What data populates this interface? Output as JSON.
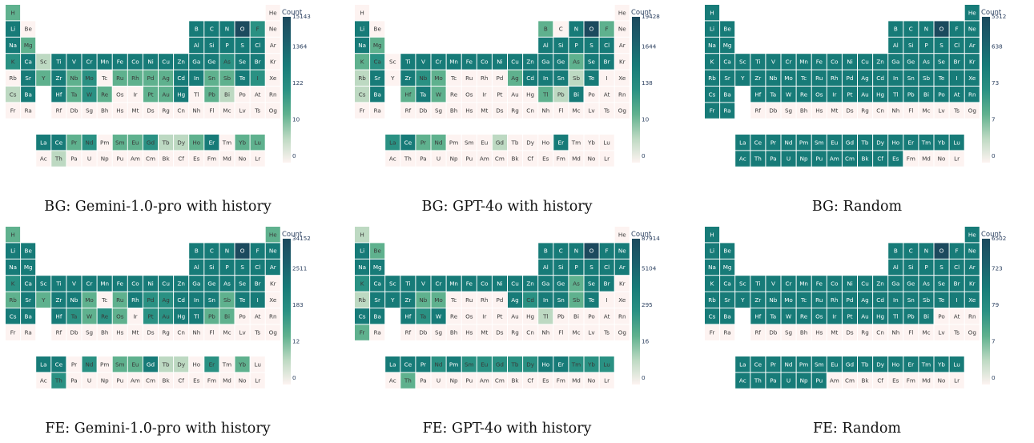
{
  "colors": {
    "scale": [
      "#fdf3f1",
      "#bdd9c2",
      "#5fb18e",
      "#2a9183",
      "#177b78",
      "#1b5f6c",
      "#1c4a5e"
    ],
    "cell_text_dark": "#3a3a3a",
    "cell_text_light": "#ffffff"
  },
  "periodic_table": {
    "main_rows": [
      [
        "H",
        "",
        "",
        "",
        "",
        "",
        "",
        "",
        "",
        "",
        "",
        "",
        "",
        "",
        "",
        "",
        "",
        "He"
      ],
      [
        "Li",
        "Be",
        "",
        "",
        "",
        "",
        "",
        "",
        "",
        "",
        "",
        "",
        "B",
        "C",
        "N",
        "O",
        "F",
        "Ne"
      ],
      [
        "Na",
        "Mg",
        "",
        "",
        "",
        "",
        "",
        "",
        "",
        "",
        "",
        "",
        "Al",
        "Si",
        "P",
        "S",
        "Cl",
        "Ar"
      ],
      [
        "K",
        "Ca",
        "Sc",
        "Ti",
        "V",
        "Cr",
        "Mn",
        "Fe",
        "Co",
        "Ni",
        "Cu",
        "Zn",
        "Ga",
        "Ge",
        "As",
        "Se",
        "Br",
        "Kr"
      ],
      [
        "Rb",
        "Sr",
        "Y",
        "Zr",
        "Nb",
        "Mo",
        "Tc",
        "Ru",
        "Rh",
        "Pd",
        "Ag",
        "Cd",
        "In",
        "Sn",
        "Sb",
        "Te",
        "I",
        "Xe"
      ],
      [
        "Cs",
        "Ba",
        "",
        "Hf",
        "Ta",
        "W",
        "Re",
        "Os",
        "Ir",
        "Pt",
        "Au",
        "Hg",
        "Tl",
        "Pb",
        "Bi",
        "Po",
        "At",
        "Rn"
      ],
      [
        "Fr",
        "Ra",
        "",
        "Rf",
        "Db",
        "Sg",
        "Bh",
        "Hs",
        "Mt",
        "Ds",
        "Rg",
        "Cn",
        "Nh",
        "Fl",
        "Mc",
        "Lv",
        "Ts",
        "Og"
      ]
    ],
    "lanthanides": [
      "La",
      "Ce",
      "Pr",
      "Nd",
      "Pm",
      "Sm",
      "Eu",
      "Gd",
      "Tb",
      "Dy",
      "Ho",
      "Er",
      "Tm",
      "Yb",
      "Lu"
    ],
    "actinides": [
      "Ac",
      "Th",
      "Pa",
      "U",
      "Np",
      "Pu",
      "Am",
      "Cm",
      "Bk",
      "Cf",
      "Es",
      "Fm",
      "Md",
      "No",
      "Lr"
    ]
  },
  "chart_data": [
    {
      "type": "heatmap",
      "title": "BG: Gemini-1.0-pro with history",
      "colorbar": {
        "title": "Count",
        "ticks": [
          "15143",
          "1364",
          "122",
          "10",
          "0"
        ]
      },
      "levels": {
        "H": 2,
        "He": 0,
        "Li": 4,
        "Be": 0,
        "B": 4,
        "C": 4,
        "N": 4,
        "O": 6,
        "F": 3,
        "Ne": 0,
        "Na": 4,
        "Mg": 2,
        "Al": 4,
        "Si": 4,
        "P": 4,
        "S": 4,
        "Cl": 4,
        "Ar": 0,
        "K": 3,
        "Ca": 4,
        "Sc": 1,
        "Ti": 4,
        "V": 4,
        "Cr": 4,
        "Mn": 4,
        "Fe": 4,
        "Co": 4,
        "Ni": 4,
        "Cu": 4,
        "Zn": 4,
        "Ga": 4,
        "Ge": 4,
        "As": 3,
        "Se": 4,
        "Br": 4,
        "Kr": 0,
        "Rb": 0,
        "Sr": 4,
        "Y": 2,
        "Zr": 4,
        "Nb": 2,
        "Mo": 3,
        "Tc": 0,
        "Ru": 2,
        "Rh": 2,
        "Pd": 2,
        "Ag": 2,
        "Cd": 4,
        "In": 4,
        "Sn": 2,
        "Sb": 2,
        "Te": 4,
        "I": 3,
        "Xe": 0,
        "Cs": 1,
        "Ba": 4,
        "Hf": 4,
        "Ta": 2,
        "W": 3,
        "Re": 2,
        "Os": 0,
        "Ir": 0,
        "Pt": 2,
        "Au": 2,
        "Hg": 4,
        "Tl": 0,
        "Pb": 2,
        "Bi": 1,
        "Po": 0,
        "At": 0,
        "Rn": 0,
        "La": 4,
        "Ce": 4,
        "Pr": 2,
        "Nd": 3,
        "Pm": 0,
        "Sm": 2,
        "Eu": 2,
        "Gd": 3,
        "Tb": 1,
        "Dy": 1,
        "Ho": 2,
        "Er": 4,
        "Tm": 0,
        "Yb": 2,
        "Lu": 2,
        "Th": 1
      }
    },
    {
      "type": "heatmap",
      "title": "BG: GPT-4o with history",
      "colorbar": {
        "title": "Count",
        "ticks": [
          "19428",
          "1644",
          "138",
          "10",
          "0"
        ]
      },
      "levels": {
        "H": 0,
        "He": 0,
        "Li": 4,
        "Be": 0,
        "B": 2,
        "C": 0,
        "N": 4,
        "O": 6,
        "F": 2,
        "Ne": 0,
        "Na": 4,
        "Mg": 2,
        "Al": 4,
        "Si": 4,
        "P": 4,
        "S": 4,
        "Cl": 4,
        "Ar": 0,
        "K": 2,
        "Ca": 3,
        "Sc": 0,
        "Ti": 4,
        "V": 4,
        "Cr": 4,
        "Mn": 4,
        "Fe": 4,
        "Co": 4,
        "Ni": 4,
        "Cu": 4,
        "Zn": 4,
        "Ga": 4,
        "Ge": 4,
        "As": 2,
        "Se": 4,
        "Br": 4,
        "Kr": 0,
        "Rb": 1,
        "Sr": 4,
        "Y": 0,
        "Zr": 4,
        "Nb": 3,
        "Mo": 2,
        "Tc": 0,
        "Ru": 0,
        "Rh": 0,
        "Pd": 0,
        "Ag": 2,
        "Cd": 4,
        "In": 4,
        "Sn": 4,
        "Sb": 1,
        "Te": 4,
        "I": 0,
        "Xe": 0,
        "Cs": 1,
        "Ba": 4,
        "Hf": 2,
        "Ta": 4,
        "W": 2,
        "Re": 0,
        "Os": 0,
        "Ir": 0,
        "Pt": 0,
        "Au": 0,
        "Hg": 0,
        "Tl": 2,
        "Pb": 1,
        "Bi": 4,
        "Po": 0,
        "At": 0,
        "Rn": 0,
        "La": 3,
        "Ce": 4,
        "Pr": 2,
        "Nd": 2,
        "Pm": 0,
        "Sm": 0,
        "Eu": 0,
        "Gd": 1,
        "Tb": 0,
        "Dy": 0,
        "Ho": 0,
        "Er": 4,
        "Tm": 0,
        "Yb": 0,
        "Lu": 0,
        "Th": 0
      }
    },
    {
      "type": "heatmap",
      "title": "BG: Random",
      "colorbar": {
        "title": "Count",
        "ticks": [
          "5512",
          "638",
          "73",
          "7",
          "0"
        ]
      },
      "levels": {
        "H": 4,
        "He": 4,
        "Li": 4,
        "Be": 4,
        "B": 4,
        "C": 4,
        "N": 4,
        "O": 6,
        "F": 4,
        "Ne": 4,
        "Na": 4,
        "Mg": 4,
        "Al": 4,
        "Si": 4,
        "P": 4,
        "S": 4,
        "Cl": 4,
        "Ar": 4,
        "K": 4,
        "Ca": 4,
        "Sc": 4,
        "Ti": 4,
        "V": 4,
        "Cr": 4,
        "Mn": 4,
        "Fe": 4,
        "Co": 4,
        "Ni": 4,
        "Cu": 4,
        "Zn": 4,
        "Ga": 4,
        "Ge": 4,
        "As": 4,
        "Se": 4,
        "Br": 4,
        "Kr": 4,
        "Rb": 4,
        "Sr": 4,
        "Y": 4,
        "Zr": 4,
        "Nb": 4,
        "Mo": 4,
        "Tc": 4,
        "Ru": 4,
        "Rh": 4,
        "Pd": 4,
        "Ag": 4,
        "Cd": 4,
        "In": 4,
        "Sn": 4,
        "Sb": 4,
        "Te": 4,
        "I": 4,
        "Xe": 4,
        "Cs": 4,
        "Ba": 4,
        "Hf": 4,
        "Ta": 4,
        "W": 4,
        "Re": 4,
        "Os": 4,
        "Ir": 4,
        "Pt": 4,
        "Au": 4,
        "Hg": 4,
        "Tl": 4,
        "Pb": 4,
        "Bi": 4,
        "Po": 4,
        "At": 4,
        "Rn": 4,
        "Fr": 4,
        "Ra": 4,
        "La": 4,
        "Ce": 4,
        "Pr": 4,
        "Nd": 4,
        "Pm": 4,
        "Sm": 4,
        "Eu": 4,
        "Gd": 4,
        "Tb": 4,
        "Dy": 4,
        "Ho": 4,
        "Er": 4,
        "Tm": 4,
        "Yb": 4,
        "Lu": 4,
        "Ac": 4,
        "Th": 4,
        "Pa": 4,
        "U": 4,
        "Np": 4,
        "Pu": 4,
        "Am": 4,
        "Cm": 4,
        "Bk": 4,
        "Cf": 4,
        "Es": 4
      }
    },
    {
      "type": "heatmap",
      "title": "FE: Gemini-1.0-pro with history",
      "colorbar": {
        "title": "Count",
        "ticks": [
          "34152",
          "2511",
          "183",
          "12",
          "0"
        ]
      },
      "levels": {
        "H": 2,
        "He": 2,
        "Li": 4,
        "Be": 4,
        "B": 4,
        "C": 4,
        "N": 4,
        "O": 6,
        "F": 4,
        "Ne": 4,
        "Na": 4,
        "Mg": 4,
        "Al": 4,
        "Si": 4,
        "P": 4,
        "S": 4,
        "Cl": 4,
        "Ar": 4,
        "K": 3,
        "Ca": 4,
        "Sc": 4,
        "Ti": 4,
        "V": 4,
        "Cr": 4,
        "Mn": 4,
        "Fe": 4,
        "Co": 4,
        "Ni": 4,
        "Cu": 4,
        "Zn": 4,
        "Ga": 4,
        "Ge": 4,
        "As": 4,
        "Se": 4,
        "Br": 4,
        "Kr": 0,
        "Rb": 2,
        "Sr": 4,
        "Y": 2,
        "Zr": 4,
        "Nb": 4,
        "Mo": 2,
        "Tc": 0,
        "Ru": 2,
        "Rh": 4,
        "Pd": 3,
        "Ag": 3,
        "Cd": 4,
        "In": 4,
        "Sn": 4,
        "Sb": 2,
        "Te": 4,
        "I": 4,
        "Xe": 0,
        "Cs": 4,
        "Ba": 4,
        "Hf": 4,
        "Ta": 3,
        "W": 2,
        "Re": 3,
        "Os": 2,
        "Ir": 0,
        "Pt": 3,
        "Au": 3,
        "Hg": 4,
        "Tl": 4,
        "Pb": 2,
        "Bi": 2,
        "Po": 0,
        "At": 0,
        "Rn": 0,
        "La": 4,
        "Ce": 4,
        "Pr": 0,
        "Nd": 3,
        "Pm": 0,
        "Sm": 2,
        "Eu": 2,
        "Gd": 4,
        "Tb": 1,
        "Dy": 1,
        "Ho": 0,
        "Er": 3,
        "Tm": 0,
        "Yb": 2,
        "Lu": 0,
        "Th": 3
      }
    },
    {
      "type": "heatmap",
      "title": "FE: GPT-4o with history",
      "colorbar": {
        "title": "Count",
        "ticks": [
          "87914",
          "5104",
          "295",
          "16",
          "0"
        ]
      },
      "levels": {
        "H": 1,
        "He": 0,
        "Li": 4,
        "Be": 2,
        "B": 4,
        "C": 4,
        "N": 4,
        "O": 6,
        "F": 4,
        "Ne": 4,
        "Na": 4,
        "Mg": 4,
        "Al": 4,
        "Si": 4,
        "P": 4,
        "S": 4,
        "Cl": 4,
        "Ar": 4,
        "K": 3,
        "Ca": 4,
        "Sc": 4,
        "Ti": 4,
        "V": 4,
        "Cr": 4,
        "Mn": 4,
        "Fe": 4,
        "Co": 4,
        "Ni": 4,
        "Cu": 4,
        "Zn": 4,
        "Ga": 4,
        "Ge": 4,
        "As": 2,
        "Se": 4,
        "Br": 4,
        "Kr": 0,
        "Rb": 1,
        "Sr": 4,
        "Y": 4,
        "Zr": 4,
        "Nb": 2,
        "Mo": 2,
        "Tc": 0,
        "Ru": 0,
        "Rh": 0,
        "Pd": 0,
        "Ag": 4,
        "Cd": 3,
        "In": 4,
        "Sn": 4,
        "Sb": 2,
        "Te": 4,
        "I": 0,
        "Xe": 0,
        "Cs": 4,
        "Ba": 4,
        "Hf": 4,
        "Ta": 3,
        "W": 4,
        "Re": 0,
        "Os": 0,
        "Ir": 0,
        "Pt": 0,
        "Au": 0,
        "Hg": 0,
        "Tl": 1,
        "Pb": 0,
        "Bi": 0,
        "Po": 0,
        "At": 0,
        "Rn": 0,
        "Fr": 2,
        "La": 4,
        "Ce": 4,
        "Pr": 4,
        "Nd": 3,
        "Pm": 4,
        "Sm": 3,
        "Eu": 3,
        "Gd": 3,
        "Tb": 3,
        "Dy": 3,
        "Ho": 4,
        "Er": 4,
        "Tm": 3,
        "Yb": 3,
        "Lu": 3,
        "Th": 2
      }
    },
    {
      "type": "heatmap",
      "title": "FE: Random",
      "colorbar": {
        "title": "Count",
        "ticks": [
          "6502",
          "723",
          "79",
          "7",
          "0"
        ]
      },
      "levels": {
        "H": 4,
        "He": 4,
        "Li": 4,
        "Be": 4,
        "B": 4,
        "C": 4,
        "N": 4,
        "O": 6,
        "F": 4,
        "Ne": 4,
        "Na": 4,
        "Mg": 4,
        "Al": 4,
        "Si": 4,
        "P": 4,
        "S": 4,
        "Cl": 4,
        "Ar": 4,
        "K": 4,
        "Ca": 4,
        "Sc": 4,
        "Ti": 4,
        "V": 4,
        "Cr": 4,
        "Mn": 4,
        "Fe": 4,
        "Co": 4,
        "Ni": 4,
        "Cu": 4,
        "Zn": 4,
        "Ga": 4,
        "Ge": 4,
        "As": 4,
        "Se": 4,
        "Br": 4,
        "Kr": 4,
        "Rb": 4,
        "Sr": 4,
        "Y": 4,
        "Zr": 4,
        "Nb": 4,
        "Mo": 4,
        "Tc": 4,
        "Ru": 4,
        "Rh": 4,
        "Pd": 4,
        "Ag": 4,
        "Cd": 4,
        "In": 4,
        "Sn": 4,
        "Sb": 4,
        "Te": 4,
        "I": 4,
        "Xe": 4,
        "Cs": 4,
        "Ba": 4,
        "Hf": 4,
        "Ta": 4,
        "W": 4,
        "Re": 4,
        "Os": 4,
        "Ir": 4,
        "Pt": 4,
        "Au": 4,
        "Hg": 4,
        "Tl": 4,
        "Pb": 4,
        "Bi": 4,
        "La": 4,
        "Ce": 4,
        "Pr": 4,
        "Nd": 4,
        "Pm": 4,
        "Sm": 4,
        "Eu": 4,
        "Gd": 4,
        "Tb": 4,
        "Dy": 4,
        "Ho": 4,
        "Er": 4,
        "Tm": 4,
        "Yb": 4,
        "Lu": 4,
        "Ac": 4,
        "Th": 4,
        "Pa": 4,
        "U": 4,
        "Np": 4,
        "Pu": 4
      }
    }
  ]
}
